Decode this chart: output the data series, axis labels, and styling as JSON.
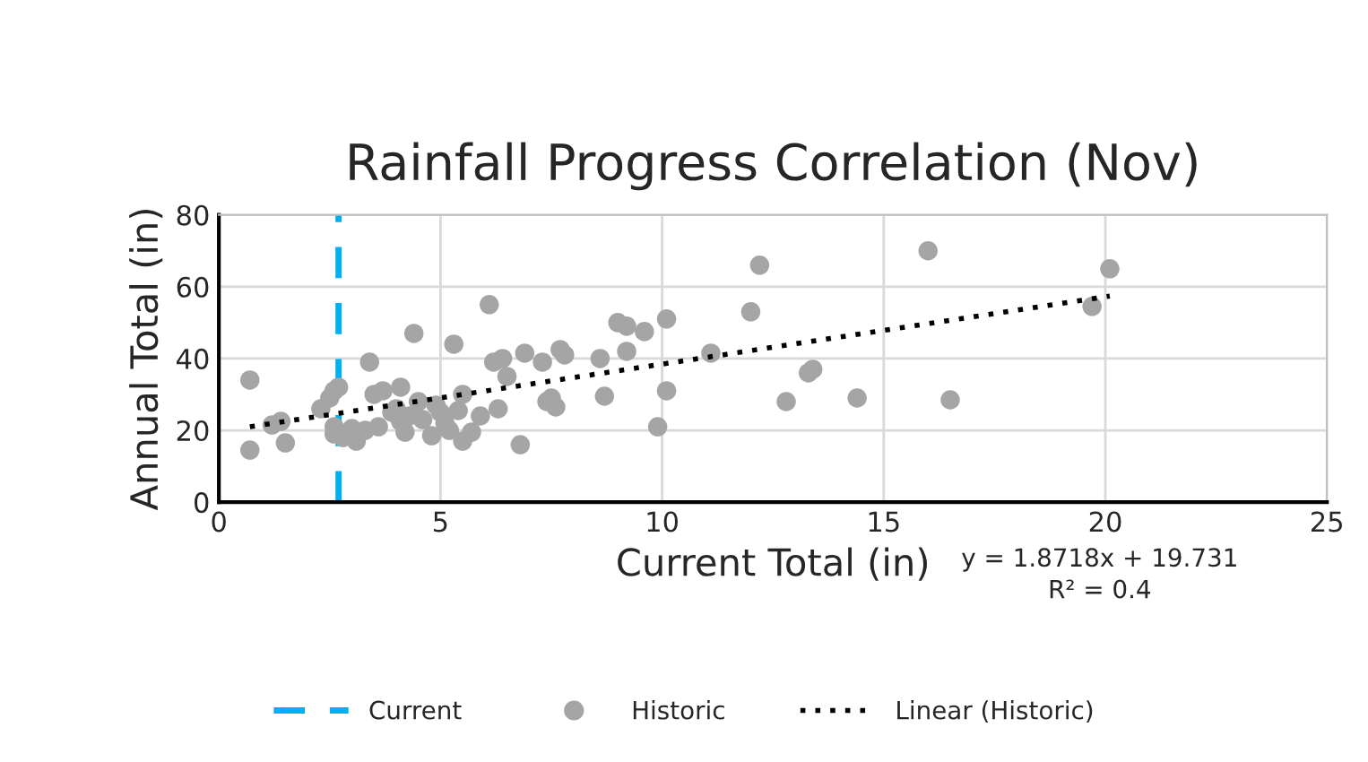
{
  "chart_data": {
    "type": "scatter",
    "title": "Rainfall Progress Correlation (Nov)",
    "xlabel": "Current Total (in)",
    "ylabel": "Annual Total (in)",
    "xlim": [
      0,
      25
    ],
    "xticks": [
      0,
      5,
      10,
      15,
      20,
      25
    ],
    "ylim": [
      0,
      80
    ],
    "yticks": [
      0,
      20,
      40,
      60,
      80
    ],
    "grid": true,
    "legend": "bottom",
    "annotations": [
      "y = 1.8718x + 19.731",
      "R² = 0.4"
    ],
    "ref_lines": [
      {
        "axis": "x",
        "value": 2.7,
        "label": "Current",
        "color": "#00b0f0",
        "line_style": "dashed"
      }
    ],
    "series": [
      {
        "name": "Historic",
        "color": "#a5a5a5",
        "marker": "circle",
        "x": [
          0.7,
          0.7,
          1.2,
          1.4,
          1.5,
          2.3,
          2.5,
          2.6,
          2.7,
          2.6,
          2.6,
          2.8,
          3.0,
          3.1,
          3.3,
          3.4,
          3.5,
          3.7,
          3.6,
          3.9,
          4.0,
          4.1,
          4.1,
          4.2,
          4.3,
          4.4,
          4.5,
          4.6,
          4.8,
          4.9,
          5.0,
          5.1,
          5.2,
          5.3,
          5.4,
          5.5,
          5.5,
          5.7,
          5.9,
          6.1,
          6.2,
          6.3,
          6.4,
          6.5,
          6.8,
          6.9,
          7.3,
          7.4,
          7.5,
          7.6,
          7.7,
          7.8,
          8.6,
          8.7,
          9.0,
          9.2,
          9.2,
          9.6,
          9.9,
          10.1,
          10.1,
          11.1,
          12.0,
          12.2,
          12.8,
          13.3,
          13.4,
          14.4,
          16.0,
          16.5,
          19.7,
          20.1
        ],
        "values": [
          34,
          14.5,
          21.5,
          22.5,
          16.5,
          26,
          29,
          31,
          32,
          21,
          19,
          18,
          20.5,
          17,
          20,
          39,
          30,
          31,
          21,
          25,
          26,
          22.5,
          32,
          19.5,
          24,
          47,
          28,
          23,
          18.5,
          27,
          25,
          22,
          20,
          44,
          25.5,
          17,
          30,
          19.5,
          24,
          55,
          39,
          26,
          40,
          35,
          16,
          41.5,
          39,
          28,
          29,
          26.5,
          42.5,
          41,
          40,
          29.5,
          50,
          49,
          42,
          47.5,
          21,
          51,
          31,
          41.5,
          53,
          66,
          28,
          36,
          37,
          29,
          70,
          28.5,
          54.5,
          65
        ]
      },
      {
        "name": "Linear (Historic)",
        "type": "line",
        "color": "#000000",
        "line_style": "dotted",
        "x": [
          0.7,
          20.1
        ],
        "values": [
          21.0,
          57.4
        ]
      }
    ]
  }
}
